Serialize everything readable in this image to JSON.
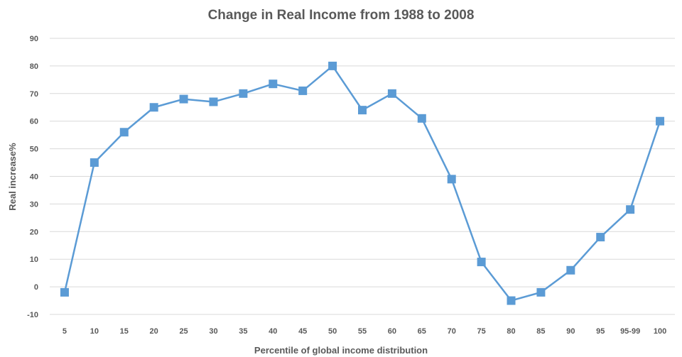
{
  "chart_data": {
    "type": "line",
    "title": "Change in Real Income from 1988 to 2008",
    "xlabel": "Percentile of global income distribution",
    "ylabel": "Real increase%",
    "categories": [
      "5",
      "10",
      "15",
      "20",
      "25",
      "30",
      "35",
      "40",
      "45",
      "50",
      "55",
      "60",
      "65",
      "70",
      "75",
      "80",
      "85",
      "90",
      "95",
      "95-99",
      "100"
    ],
    "series": [
      {
        "values": [
          -2,
          45,
          56,
          65,
          68,
          67,
          70,
          73.5,
          71,
          80,
          64,
          70,
          61,
          39,
          9,
          -5,
          -2,
          6,
          18,
          28,
          60
        ],
        "color": "#5b9bd5"
      }
    ],
    "ylim": [
      -10,
      90
    ],
    "yticks": [
      -10,
      0,
      10,
      20,
      30,
      40,
      50,
      60,
      70,
      80,
      90
    ],
    "ytick_labels": [
      "-10",
      "0",
      "10",
      "20",
      "30",
      "40",
      "50",
      "60",
      "70",
      "80",
      "90"
    ],
    "grid": true,
    "legend": "none"
  }
}
